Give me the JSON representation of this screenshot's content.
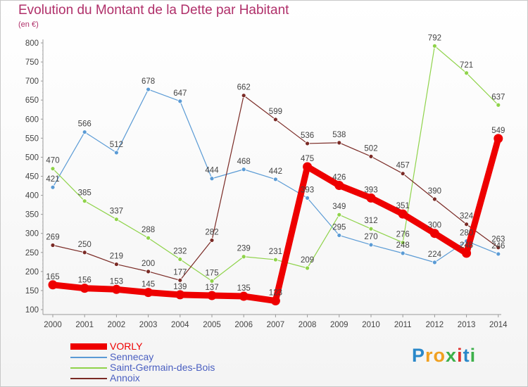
{
  "title": "Evolution du Montant de la Dette par Habitant",
  "subtitle": "(en €)",
  "logo": {
    "text": "Proxiti",
    "letter_colors": [
      "#2a88c9",
      "#f0a020",
      "#f0a020",
      "#3db04a",
      "#e0302e",
      "#2a88c9",
      "#3db04a"
    ]
  },
  "chart_data": {
    "type": "line",
    "x": [
      "2000",
      "2001",
      "2002",
      "2003",
      "2004",
      "2005",
      "2006",
      "2007",
      "2008",
      "2009",
      "2010",
      "2011",
      "2012",
      "2013",
      "2014"
    ],
    "ylim": [
      100,
      800
    ],
    "yticks": [
      "100",
      "150",
      "200",
      "250",
      "300",
      "350",
      "400",
      "450",
      "500",
      "550",
      "600",
      "650",
      "700",
      "750",
      "800"
    ],
    "grid": false,
    "legend_position": "bottom-left",
    "series": [
      {
        "name": "VORLY",
        "color": "#ee0000",
        "emphasis": true,
        "values": [
          165,
          156,
          153,
          145,
          139,
          137,
          135,
          123,
          475,
          426,
          393,
          351,
          300,
          248,
          549
        ],
        "labels": [
          "165",
          "156",
          "153",
          "145",
          "139",
          "137",
          "135",
          "123",
          "475",
          "426",
          "393",
          "351",
          "300",
          "248",
          "549"
        ]
      },
      {
        "name": "Sennecay",
        "color": "#5b9bd5",
        "values": [
          421,
          566,
          512,
          678,
          647,
          444,
          468,
          442,
          393,
          295,
          270,
          248,
          224,
          280,
          246
        ],
        "labels": [
          "421",
          "566",
          "512",
          "678",
          "647",
          "444",
          "468",
          "442",
          "393",
          "295",
          "270",
          "248",
          "224",
          "280",
          "246"
        ]
      },
      {
        "name": "Saint-Germain-des-Bois",
        "color": "#8fd34a",
        "values": [
          470,
          385,
          337,
          288,
          232,
          175,
          239,
          231,
          209,
          349,
          312,
          276,
          792,
          721,
          637
        ],
        "labels": [
          "470",
          "385",
          "337",
          "288",
          "232",
          "175",
          "239",
          "231",
          "209",
          "349",
          "312",
          "276",
          "792",
          "721",
          "637"
        ]
      },
      {
        "name": "Annoix",
        "color": "#7a2a25",
        "values": [
          269,
          250,
          219,
          200,
          177,
          282,
          662,
          599,
          536,
          538,
          502,
          457,
          390,
          324,
          263
        ],
        "labels": [
          "269",
          "250",
          "219",
          "200",
          "177",
          "282",
          "662",
          "599",
          "536",
          "538",
          "502",
          "457",
          "390",
          "324",
          "263"
        ]
      }
    ]
  }
}
